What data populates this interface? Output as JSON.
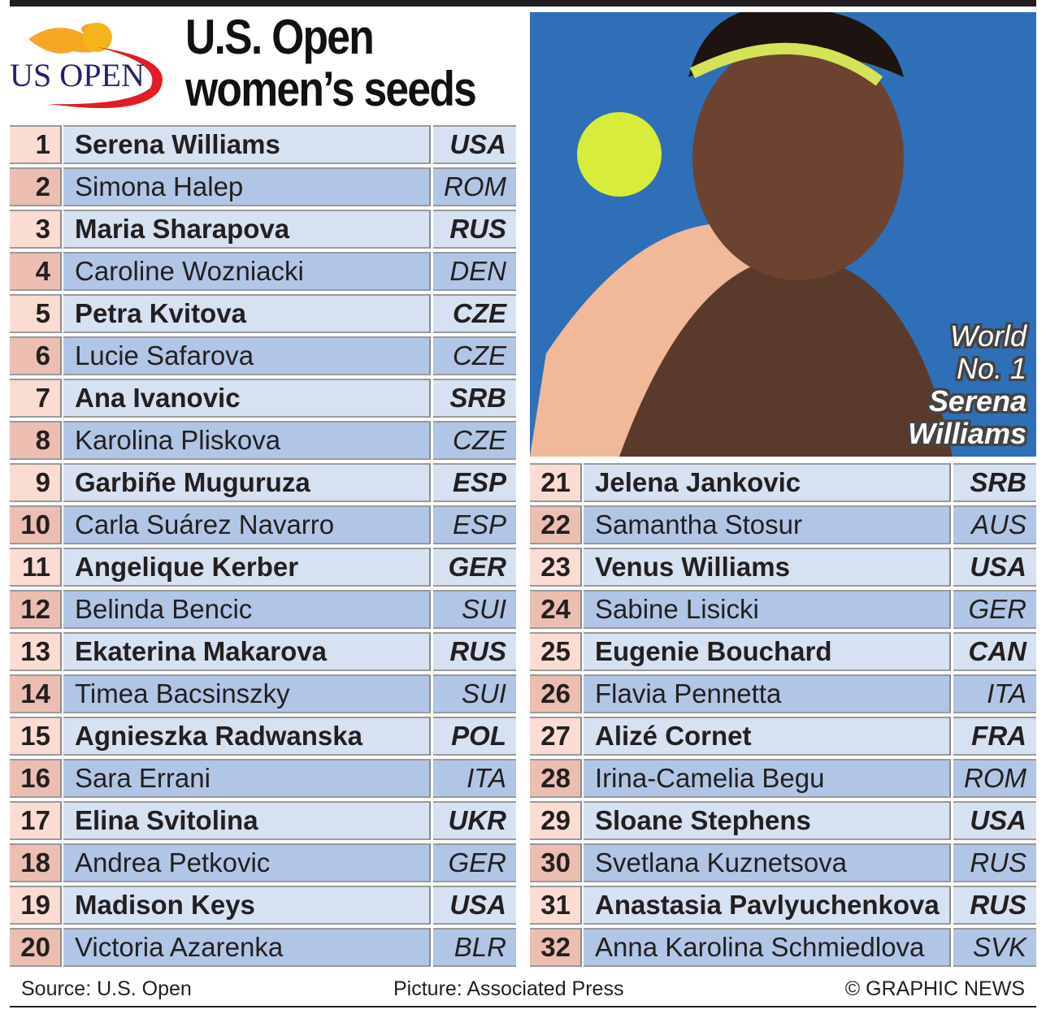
{
  "title": {
    "line1": "U.S. Open",
    "line2": "women’s seeds"
  },
  "logo": {
    "text": "US OPEN",
    "icon": "flaming-tennis-ball-logo"
  },
  "colors": {
    "odd_number_bg": "#fbdcd2",
    "even_number_bg": "#ecbeb2",
    "odd_name_bg": "#d6e1f2",
    "even_name_bg": "#b1c6e6",
    "logo_red": "#e31b23",
    "logo_blue": "#23236b"
  },
  "photo": {
    "caption": [
      "World",
      "No. 1",
      "Serena",
      "Williams"
    ]
  },
  "seeds_left": [
    {
      "seed": "1",
      "name": "Serena Williams",
      "country": "USA"
    },
    {
      "seed": "2",
      "name": "Simona Halep",
      "country": "ROM"
    },
    {
      "seed": "3",
      "name": "Maria Sharapova",
      "country": "RUS"
    },
    {
      "seed": "4",
      "name": "Caroline Wozniacki",
      "country": "DEN"
    },
    {
      "seed": "5",
      "name": "Petra Kvitova",
      "country": "CZE"
    },
    {
      "seed": "6",
      "name": "Lucie Safarova",
      "country": "CZE"
    },
    {
      "seed": "7",
      "name": "Ana Ivanovic",
      "country": "SRB"
    },
    {
      "seed": "8",
      "name": "Karolina Pliskova",
      "country": "CZE"
    },
    {
      "seed": "9",
      "name": "Garbiñe Muguruza",
      "country": "ESP"
    },
    {
      "seed": "10",
      "name": "Carla Suárez Navarro",
      "country": "ESP"
    },
    {
      "seed": "11",
      "name": "Angelique Kerber",
      "country": "GER"
    },
    {
      "seed": "12",
      "name": "Belinda Bencic",
      "country": "SUI"
    },
    {
      "seed": "13",
      "name": "Ekaterina Makarova",
      "country": "RUS"
    },
    {
      "seed": "14",
      "name": "Timea Bacsinszky",
      "country": "SUI"
    },
    {
      "seed": "15",
      "name": "Agnieszka Radwanska",
      "country": "POL"
    },
    {
      "seed": "16",
      "name": "Sara Errani",
      "country": "ITA"
    },
    {
      "seed": "17",
      "name": "Elina Svitolina",
      "country": "UKR"
    },
    {
      "seed": "18",
      "name": "Andrea Petkovic",
      "country": "GER"
    },
    {
      "seed": "19",
      "name": "Madison Keys",
      "country": "USA"
    },
    {
      "seed": "20",
      "name": "Victoria Azarenka",
      "country": "BLR"
    }
  ],
  "seeds_right": [
    {
      "seed": "21",
      "name": "Jelena Jankovic",
      "country": "SRB"
    },
    {
      "seed": "22",
      "name": "Samantha Stosur",
      "country": "AUS"
    },
    {
      "seed": "23",
      "name": "Venus Williams",
      "country": "USA"
    },
    {
      "seed": "24",
      "name": "Sabine Lisicki",
      "country": "GER"
    },
    {
      "seed": "25",
      "name": "Eugenie Bouchard",
      "country": "CAN"
    },
    {
      "seed": "26",
      "name": "Flavia Pennetta",
      "country": "ITA"
    },
    {
      "seed": "27",
      "name": "Alizé Cornet",
      "country": "FRA"
    },
    {
      "seed": "28",
      "name": "Irina-Camelia Begu",
      "country": "ROM"
    },
    {
      "seed": "29",
      "name": "Sloane Stephens",
      "country": "USA"
    },
    {
      "seed": "30",
      "name": "Svetlana Kuznetsova",
      "country": "RUS"
    },
    {
      "seed": "31",
      "name": "Anastasia Pavlyuchenkova",
      "country": "RUS"
    },
    {
      "seed": "32",
      "name": "Anna Karolina Schmiedlova",
      "country": "SVK"
    }
  ],
  "footer": {
    "source": "Source: U.S. Open",
    "picture": "Picture: Associated Press",
    "copyright": "© GRAPHIC NEWS"
  }
}
